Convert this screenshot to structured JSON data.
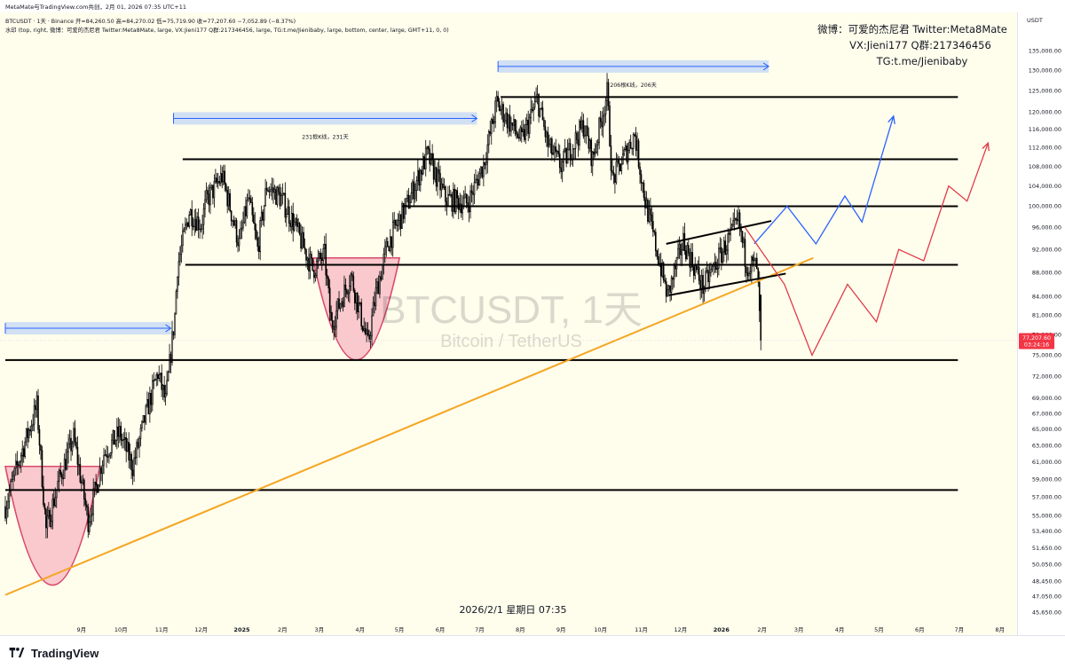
{
  "header": {
    "line1": "MetaMate与TradingView.com共创，2月 01, 2026 07:35 UTC+11",
    "line2": "BTCUSDT · 1天 · Binance  开=84,260.50  高=84,270.02  低=75,719.90  收=77,207.60  −7,052.89 (−8.37%)",
    "line3": "水印 (top, right, 微博：可爱的杰尼君 Twitter:Meta8Mate, large, VX:Jieni177 Q群:217346456, large, TG:t.me/Jienibaby, large, bottom, center, large, GMT+11, 0, 0)"
  },
  "watermark": {
    "symbol": "BTCUSDT, 1天",
    "description": "Bitcoin / TetherUS",
    "social_line1": "微博：可爱的杰尼君 Twitter:Meta8Mate",
    "social_line2": "VX:Jieni177 Q群:217346456",
    "social_line3": "TG:t.me/Jienibaby",
    "timestamp": "2026/2/1 星期日 07:35"
  },
  "brand": {
    "name": "TradingView",
    "icon": "tradingview-logo-icon"
  },
  "price_axis": {
    "currency": "USDT",
    "last_price": "77,207.60",
    "countdown": "03:24:16",
    "last_price_color": "#f23645"
  },
  "colors": {
    "pane_background": "#fffdec",
    "up_candle": "#ffffff",
    "down_candle": "#000000",
    "support_resistance": "#000000",
    "trendline": "#f5a623",
    "bullish_projection": "#2962ff",
    "bearish_projection": "#e03c4a",
    "cup_fill": "#f7b7c3",
    "range_fill": "#c9dbf5"
  },
  "chart_data": {
    "type": "candlestick",
    "symbol": "BTCUSDT",
    "interval": "1天",
    "exchange": "Binance",
    "y_scale": "log",
    "ylim": [
      44500,
      141000
    ],
    "xlim": [
      "2024-07-05",
      "2026-08-10"
    ],
    "x_tick_labels": [
      {
        "date": "2024-07-01",
        "label": "7月"
      },
      {
        "date": "2024-09-01",
        "label": "9月"
      },
      {
        "date": "2024-10-01",
        "label": "10月"
      },
      {
        "date": "2024-11-01",
        "label": "11月"
      },
      {
        "date": "2024-12-01",
        "label": "12月"
      },
      {
        "date": "2025-01-01",
        "label": "2025"
      },
      {
        "date": "2025-02-01",
        "label": "2月"
      },
      {
        "date": "2025-03-01",
        "label": "3月"
      },
      {
        "date": "2025-04-01",
        "label": "4月"
      },
      {
        "date": "2025-05-01",
        "label": "5月"
      },
      {
        "date": "2025-06-01",
        "label": "6月"
      },
      {
        "date": "2025-07-01",
        "label": "7月"
      },
      {
        "date": "2025-08-01",
        "label": "8月"
      },
      {
        "date": "2025-09-01",
        "label": "9月"
      },
      {
        "date": "2025-10-01",
        "label": "10月"
      },
      {
        "date": "2025-11-01",
        "label": "11月"
      },
      {
        "date": "2025-12-01",
        "label": "12月"
      },
      {
        "date": "2026-01-01",
        "label": "2026"
      },
      {
        "date": "2026-02-01",
        "label": "2月"
      },
      {
        "date": "2026-03-01",
        "label": "3月"
      },
      {
        "date": "2026-04-01",
        "label": "4月"
      },
      {
        "date": "2026-05-01",
        "label": "5月"
      },
      {
        "date": "2026-06-01",
        "label": "6月"
      },
      {
        "date": "2026-07-01",
        "label": "7月"
      },
      {
        "date": "2026-08-01",
        "label": "8月"
      }
    ],
    "y_tick_labels": [
      {
        "value": 135000,
        "label": "135,000.00"
      },
      {
        "value": 130000,
        "label": "130,000.00"
      },
      {
        "value": 125000,
        "label": "125,000.00"
      },
      {
        "value": 120000,
        "label": "120,000.00"
      },
      {
        "value": 116000,
        "label": "116,000.00"
      },
      {
        "value": 112000,
        "label": "112,000.00"
      },
      {
        "value": 108000,
        "label": "108,000.00"
      },
      {
        "value": 104000,
        "label": "104,000.00"
      },
      {
        "value": 100000,
        "label": "100,000.00"
      },
      {
        "value": 96000,
        "label": "96,000.00"
      },
      {
        "value": 92000,
        "label": "92,000.00"
      },
      {
        "value": 88000,
        "label": "88,000.00"
      },
      {
        "value": 84000,
        "label": "84,000.00"
      },
      {
        "value": 81000,
        "label": "81,000.00"
      },
      {
        "value": 78000,
        "label": "78,000.00"
      },
      {
        "value": 75000,
        "label": "75,000.00"
      },
      {
        "value": 72000,
        "label": "72,000.00"
      },
      {
        "value": 69000,
        "label": "69,000.00"
      },
      {
        "value": 67000,
        "label": "67,000.00"
      },
      {
        "value": 65000,
        "label": "65,000.00"
      },
      {
        "value": 63000,
        "label": "63,000.00"
      },
      {
        "value": 61000,
        "label": "61,000.00"
      },
      {
        "value": 59000,
        "label": "59,000.00"
      },
      {
        "value": 57000,
        "label": "57,000.00"
      },
      {
        "value": 55000,
        "label": "55,000.00"
      },
      {
        "value": 53400,
        "label": "53,400.00"
      },
      {
        "value": 51650,
        "label": "51,650.00"
      },
      {
        "value": 50050,
        "label": "50,050.00"
      },
      {
        "value": 48450,
        "label": "48,450.00"
      },
      {
        "value": 47050,
        "label": "47,050.00"
      },
      {
        "value": 45650,
        "label": "45,650.00"
      }
    ],
    "price_path": [
      [
        "2024-07-05",
        56000
      ],
      [
        "2024-07-15",
        61000
      ],
      [
        "2024-07-29",
        68000
      ],
      [
        "2024-08-05",
        53500
      ],
      [
        "2024-08-15",
        59000
      ],
      [
        "2024-08-26",
        64000
      ],
      [
        "2024-09-06",
        54500
      ],
      [
        "2024-09-18",
        62000
      ],
      [
        "2024-09-30",
        64500
      ],
      [
        "2024-10-10",
        60500
      ],
      [
        "2024-10-21",
        67500
      ],
      [
        "2024-10-29",
        72500
      ],
      [
        "2024-11-04",
        68500
      ],
      [
        "2024-11-11",
        81000
      ],
      [
        "2024-11-13",
        89000
      ],
      [
        "2024-11-22",
        99000
      ],
      [
        "2024-12-01",
        96500
      ],
      [
        "2024-12-05",
        101000
      ],
      [
        "2024-12-17",
        106000
      ],
      [
        "2024-12-30",
        93000
      ],
      [
        "2025-01-06",
        101500
      ],
      [
        "2025-01-13",
        92000
      ],
      [
        "2025-01-20",
        104000
      ],
      [
        "2025-01-31",
        101500
      ],
      [
        "2025-02-10",
        96500
      ],
      [
        "2025-02-24",
        88500
      ],
      [
        "2025-03-05",
        91000
      ],
      [
        "2025-03-10",
        79500
      ],
      [
        "2025-03-25",
        87500
      ],
      [
        "2025-04-07",
        76500
      ],
      [
        "2025-04-13",
        84500
      ],
      [
        "2025-04-22",
        93000
      ],
      [
        "2025-05-08",
        101000
      ],
      [
        "2025-05-22",
        110500
      ],
      [
        "2025-06-05",
        101500
      ],
      [
        "2025-06-22",
        100500
      ],
      [
        "2025-07-04",
        108500
      ],
      [
        "2025-07-14",
        122000
      ],
      [
        "2025-08-02",
        113500
      ],
      [
        "2025-08-14",
        123000
      ],
      [
        "2025-08-22",
        112500
      ],
      [
        "2025-09-01",
        108000
      ],
      [
        "2025-09-18",
        117000
      ],
      [
        "2025-09-25",
        109500
      ],
      [
        "2025-10-06",
        124500
      ],
      [
        "2025-10-10",
        105000
      ],
      [
        "2025-10-27",
        115000
      ],
      [
        "2025-11-04",
        101000
      ],
      [
        "2025-11-21",
        84000
      ],
      [
        "2025-12-03",
        93500
      ],
      [
        "2025-12-18",
        85500
      ],
      [
        "2026-01-06",
        93500
      ],
      [
        "2026-01-14",
        97000
      ],
      [
        "2026-01-20",
        89500
      ],
      [
        "2026-01-28",
        89000
      ],
      [
        "2026-01-31",
        77208
      ]
    ],
    "last_candle": {
      "date": "2026-01-31",
      "open": 84260.5,
      "high": 84270.02,
      "low": 75719.9,
      "close": 77207.6,
      "change": -7052.89,
      "change_pct": -8.37
    },
    "horizontal_levels": [
      {
        "value": 123500,
        "from": "2025-07-17",
        "to": "2026-06-30"
      },
      {
        "value": 109500,
        "from": "2024-11-17",
        "to": "2026-06-30"
      },
      {
        "value": 100000,
        "from": "2025-05-03",
        "to": "2026-06-30"
      },
      {
        "value": 89300,
        "from": "2024-11-19",
        "to": "2026-06-30"
      },
      {
        "value": 74300,
        "from": "2024-07-05",
        "to": "2026-06-30"
      },
      {
        "value": 57800,
        "from": "2024-07-05",
        "to": "2026-06-30"
      }
    ],
    "trendline": {
      "from": [
        "2024-07-05",
        47200
      ],
      "to": [
        "2026-03-12",
        90500
      ]
    },
    "channel": {
      "upper": [
        [
          "2025-11-20",
          93000
        ],
        [
          "2026-02-08",
          97200
        ]
      ],
      "lower": [
        [
          "2025-11-22",
          84200
        ],
        [
          "2026-02-19",
          87800
        ]
      ]
    },
    "cup_patterns": [
      {
        "from": "2024-07-05",
        "to": "2024-09-15",
        "top": 60500,
        "bottom": 48100
      },
      {
        "from": "2025-02-24",
        "to": "2025-05-01",
        "top": 90500,
        "bottom": 74300
      }
    ],
    "range_markers": [
      {
        "from": "2024-07-05",
        "to": "2024-11-08",
        "price": 79000
      },
      {
        "from": "2024-11-10",
        "to": "2025-06-29",
        "price": 118500,
        "label": "231根K线，231天"
      },
      {
        "from": "2025-07-15",
        "to": "2026-02-06",
        "price": 131000,
        "label": "206根K线，206天"
      }
    ],
    "projections": [
      {
        "name": "看涨路径",
        "color": "#2962ff",
        "points": [
          [
            "2026-01-26",
            93000
          ],
          [
            "2026-02-20",
            100000
          ],
          [
            "2026-03-14",
            93000
          ],
          [
            "2026-04-05",
            102000
          ],
          [
            "2026-04-18",
            97000
          ],
          [
            "2026-05-12",
            119000
          ]
        ]
      },
      {
        "name": "看跌路径",
        "color": "#e03c4a",
        "points": [
          [
            "2026-01-19",
            96000
          ],
          [
            "2026-02-18",
            86000
          ],
          [
            "2026-03-11",
            75000
          ],
          [
            "2026-04-07",
            86000
          ],
          [
            "2026-04-29",
            80000
          ],
          [
            "2026-05-16",
            92000
          ],
          [
            "2026-06-04",
            90000
          ],
          [
            "2026-06-23",
            104000
          ],
          [
            "2026-07-07",
            101000
          ],
          [
            "2026-07-23",
            113000
          ]
        ]
      }
    ]
  }
}
